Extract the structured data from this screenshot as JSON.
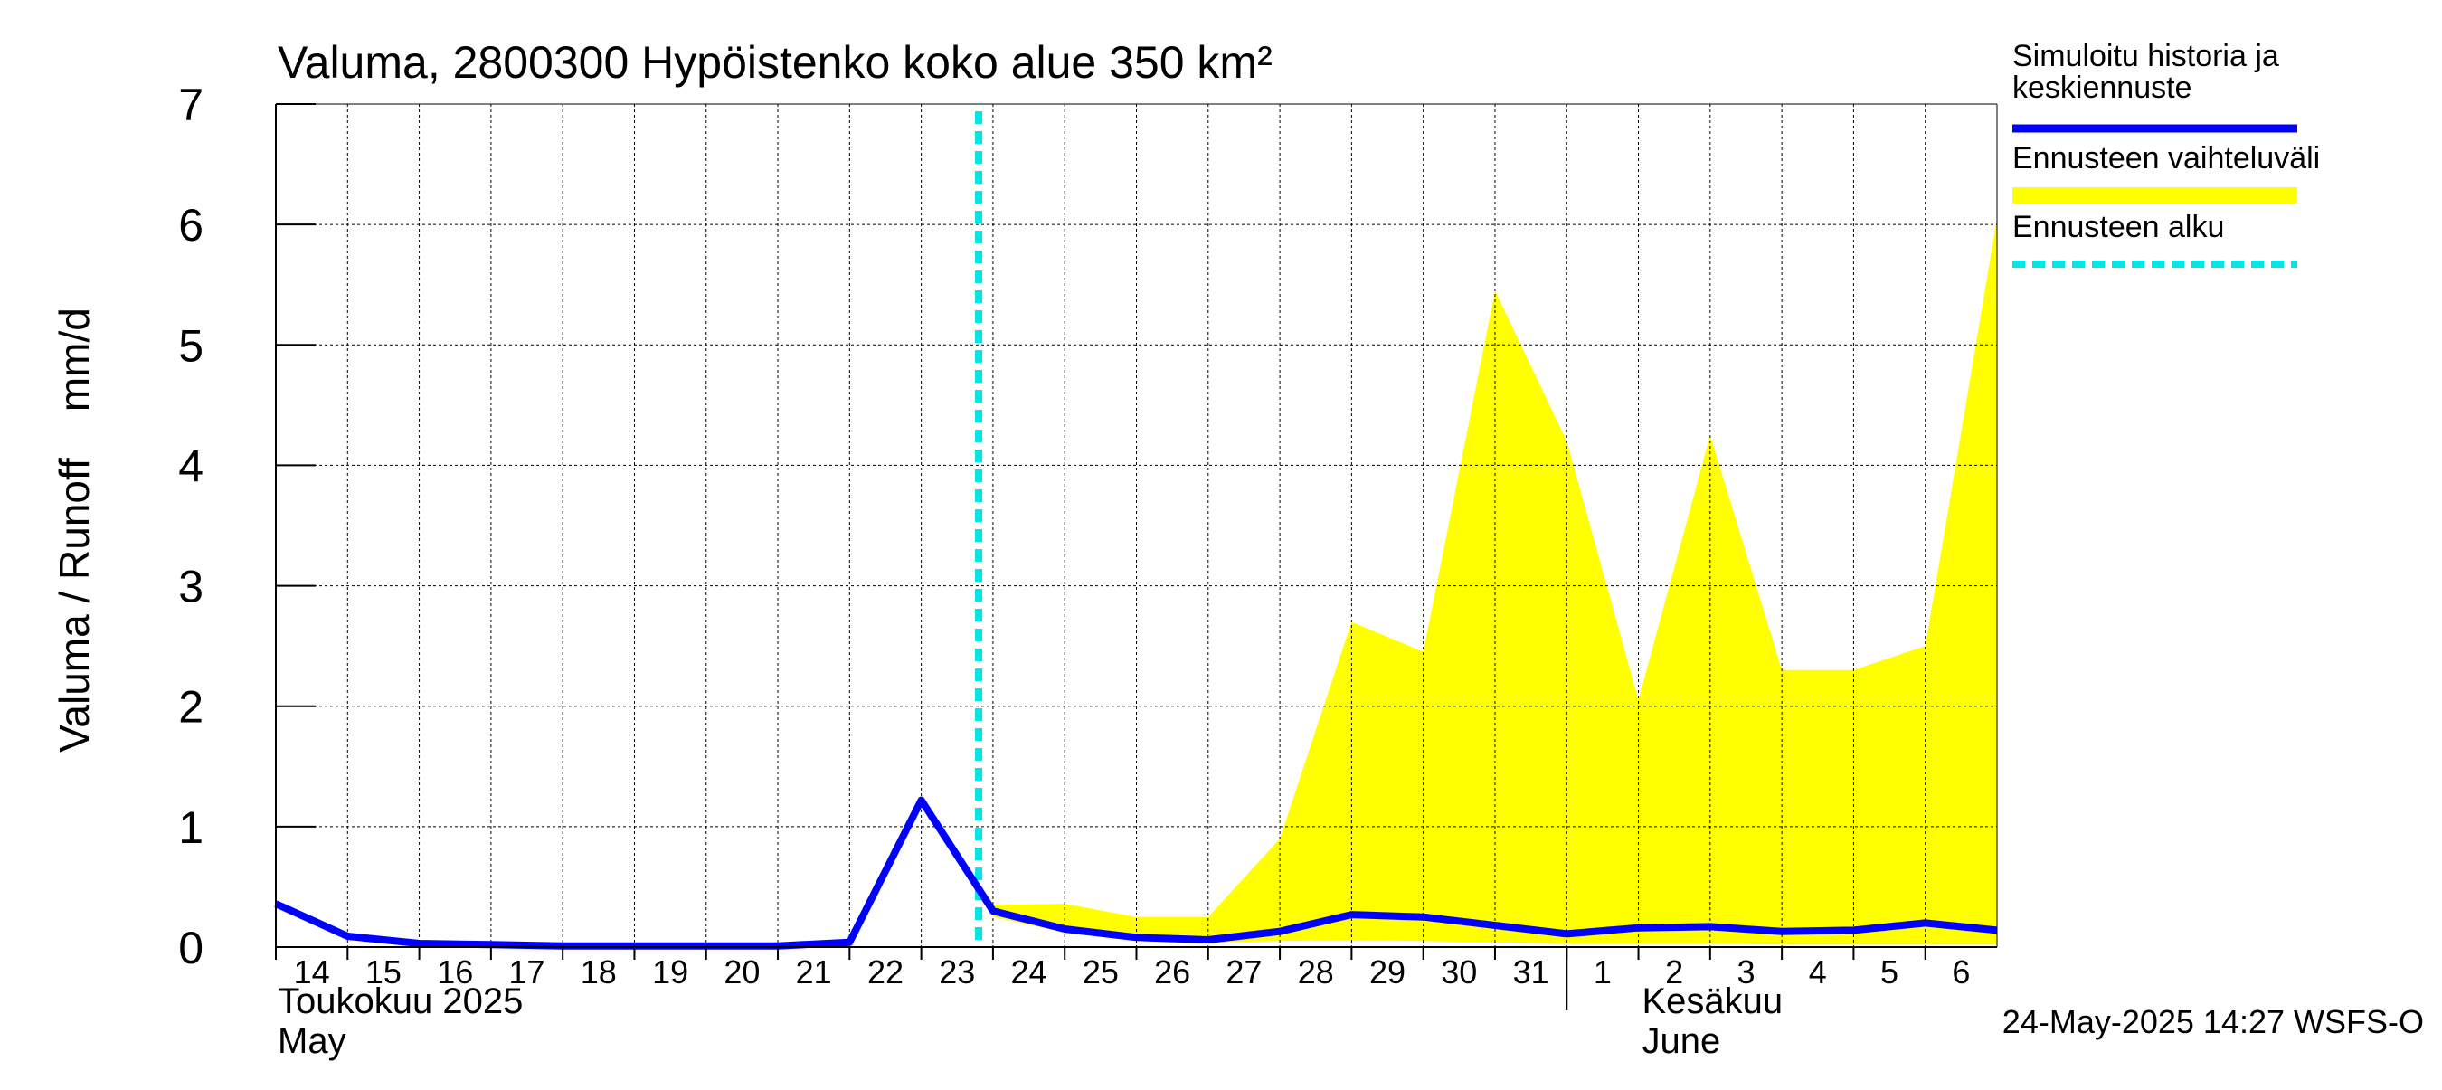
{
  "chart_data": {
    "type": "area",
    "title": "Valuma, 2800300 Hypöistenko koko alue 350 km²",
    "ylabel": "Valuma / Runoff    mm/d",
    "ylim": [
      0,
      7
    ],
    "yticks": [
      "0",
      "1",
      "2",
      "3",
      "4",
      "5",
      "6",
      "7"
    ],
    "xlim": [
      "2025-05-14",
      "2025-06-07"
    ],
    "day_ticks": [
      "14",
      "15",
      "16",
      "17",
      "18",
      "19",
      "20",
      "21",
      "22",
      "23",
      "24",
      "25",
      "26",
      "27",
      "28",
      "29",
      "30",
      "31",
      "1",
      "2",
      "3",
      "4",
      "5",
      "6"
    ],
    "month_labels": [
      {
        "fi": "Toukokuu  2025",
        "en": "May",
        "date": "2025-05-14"
      },
      {
        "fi": "Kesäkuu",
        "en": "June",
        "date": "2025-06-01"
      }
    ],
    "grid": true,
    "legend_position": "right",
    "legend": [
      {
        "label": "Simuloitu historia ja keskiennuste",
        "label_lines": [
          "Simuloitu historia ja",
          "keskiennuste"
        ],
        "color": "#0000ff",
        "style": "line"
      },
      {
        "label": "Ennusteen vaihteluväli",
        "label_lines": [
          "Ennusteen vaihteluväli"
        ],
        "color": "#ffff00",
        "style": "band"
      },
      {
        "label": "Ennusteen alku",
        "label_lines": [
          "Ennusteen alku"
        ],
        "color": "#00e5e5",
        "style": "dashed"
      }
    ],
    "forecast_start": "2025-05-24",
    "series": [
      {
        "name": "Simuloitu historia ja keskiennuste",
        "color": "#0000ff",
        "x": [
          "2025-05-14",
          "2025-05-15",
          "2025-05-16",
          "2025-05-17",
          "2025-05-18",
          "2025-05-19",
          "2025-05-20",
          "2025-05-21",
          "2025-05-22",
          "2025-05-23",
          "2025-05-24",
          "2025-05-25",
          "2025-05-26",
          "2025-05-27",
          "2025-05-28",
          "2025-05-29",
          "2025-05-30",
          "2025-05-31",
          "2025-06-01",
          "2025-06-02",
          "2025-06-03",
          "2025-06-04",
          "2025-06-05",
          "2025-06-06",
          "2025-06-07"
        ],
        "values": [
          0.36,
          0.09,
          0.03,
          0.02,
          0.01,
          0.01,
          0.01,
          0.01,
          0.04,
          1.22,
          0.3,
          0.15,
          0.08,
          0.06,
          0.13,
          0.27,
          0.25,
          0.18,
          0.11,
          0.16,
          0.17,
          0.13,
          0.14,
          0.2,
          0.14
        ]
      },
      {
        "name": "Ennusteen vaihteluväli",
        "color": "#ffff00",
        "x": [
          "2025-05-24",
          "2025-05-25",
          "2025-05-26",
          "2025-05-27",
          "2025-05-28",
          "2025-05-29",
          "2025-05-30",
          "2025-05-31",
          "2025-06-01",
          "2025-06-02",
          "2025-06-03",
          "2025-06-04",
          "2025-06-05",
          "2025-06-06",
          "2025-06-07"
        ],
        "upper": [
          0.35,
          0.36,
          0.25,
          0.25,
          0.9,
          2.7,
          2.45,
          5.45,
          4.2,
          2.05,
          4.25,
          2.3,
          2.3,
          2.5,
          6.05
        ],
        "lower": [
          0.25,
          0.12,
          0.05,
          0.04,
          0.05,
          0.06,
          0.05,
          0.04,
          0.03,
          0.03,
          0.03,
          0.02,
          0.02,
          0.02,
          0.02
        ]
      }
    ]
  },
  "footer": {
    "timestamp": "24-May-2025 14:27 WSFS-O"
  }
}
